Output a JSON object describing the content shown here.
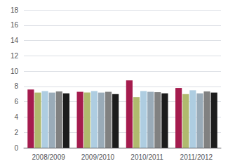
{
  "chart_data": {
    "type": "bar",
    "categories": [
      "2008/2009",
      "2009/2010",
      "2010/2011",
      "2011/2012"
    ],
    "series": [
      {
        "color": "#a51c4e",
        "values": [
          7.6,
          7.3,
          8.8,
          7.8
        ]
      },
      {
        "color": "#b0ba6e",
        "values": [
          7.2,
          7.2,
          6.6,
          7.0
        ]
      },
      {
        "color": "#aecde1",
        "values": [
          7.4,
          7.4,
          7.4,
          7.5
        ]
      },
      {
        "color": "#9aabb8",
        "values": [
          7.2,
          7.2,
          7.3,
          7.1
        ]
      },
      {
        "color": "#818181",
        "values": [
          7.35,
          7.3,
          7.25,
          7.35
        ]
      },
      {
        "color": "#1c1c1c",
        "values": [
          7.1,
          7.0,
          7.1,
          7.2
        ]
      }
    ],
    "ylim": [
      0,
      18
    ],
    "yticks": [
      0,
      2,
      4,
      6,
      8,
      10,
      12,
      14,
      16,
      18
    ],
    "grid": true
  }
}
